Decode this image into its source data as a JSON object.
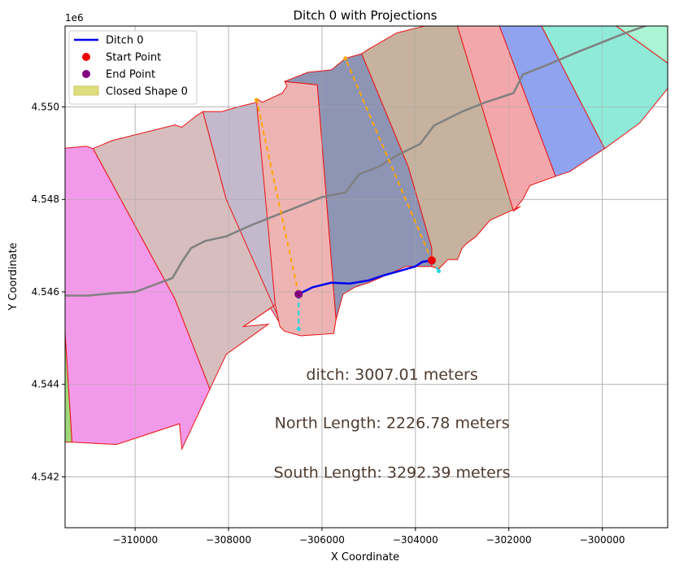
{
  "chart_data": {
    "type": "line",
    "title": "Ditch 0 with Projections",
    "xlabel": "X Coordinate",
    "ylabel": "Y Coordinate",
    "y_offset_label": "1e6",
    "xlim": [
      -311500,
      -298600
    ],
    "ylim": [
      4540900,
      4551750
    ],
    "grid": true,
    "legend_position": "top-left",
    "x_ticks": [
      {
        "value": -310000,
        "label": "−310000"
      },
      {
        "value": -308000,
        "label": "−308000"
      },
      {
        "value": -306000,
        "label": "−306000"
      },
      {
        "value": -304000,
        "label": "−304000"
      },
      {
        "value": -302000,
        "label": "−302000"
      },
      {
        "value": -300000,
        "label": "−300000"
      }
    ],
    "y_ticks": [
      {
        "value": 4542000,
        "label": "4.542"
      },
      {
        "value": 4544000,
        "label": "4.544"
      },
      {
        "value": 4546000,
        "label": "4.546"
      },
      {
        "value": 4548000,
        "label": "4.548"
      },
      {
        "value": 4550000,
        "label": "4.550"
      }
    ],
    "legend": [
      {
        "label": "Ditch 0",
        "kind": "line",
        "color": "#0000ee"
      },
      {
        "label": "Start Point",
        "kind": "marker",
        "color": "#ee0000"
      },
      {
        "label": "End Point",
        "kind": "marker",
        "color": "#800080"
      },
      {
        "label": "Closed Shape 0",
        "kind": "patch",
        "color": "#dede80"
      }
    ],
    "polygons": [
      {
        "fill": "#9fd77a",
        "points": [
          [
            -311600,
            4546700
          ],
          [
            -311350,
            4542750
          ],
          [
            -311600,
            4542750
          ]
        ]
      },
      {
        "fill": "#f29ae9",
        "points": [
          [
            -311600,
            4549100
          ],
          [
            -311050,
            4549150
          ],
          [
            -310900,
            4549100
          ],
          [
            -309150,
            4545850
          ],
          [
            -308400,
            4543900
          ],
          [
            -309000,
            4542600
          ],
          [
            -309050,
            4543150
          ],
          [
            -310400,
            4542700
          ],
          [
            -311350,
            4542750
          ],
          [
            -311600,
            4546700
          ]
        ]
      },
      {
        "fill": "#d7bdbe",
        "points": [
          [
            -310900,
            4549100
          ],
          [
            -310500,
            4549270
          ],
          [
            -309150,
            4549610
          ],
          [
            -309000,
            4549560
          ],
          [
            -308700,
            4549800
          ],
          [
            -308550,
            4549900
          ],
          [
            -308050,
            4548000
          ],
          [
            -307000,
            4545720
          ],
          [
            -307100,
            4545650
          ],
          [
            -307680,
            4545250
          ],
          [
            -307150,
            4545300
          ],
          [
            -308050,
            4544650
          ],
          [
            -308400,
            4543900
          ],
          [
            -309150,
            4545850
          ]
        ]
      },
      {
        "fill": "#c4b8cc",
        "points": [
          [
            -308550,
            4549900
          ],
          [
            -308150,
            4549900
          ],
          [
            -307800,
            4550000
          ],
          [
            -307400,
            4550100
          ],
          [
            -307380,
            4550170
          ],
          [
            -307000,
            4545720
          ],
          [
            -307680,
            4545250
          ],
          [
            -307100,
            4545650
          ],
          [
            -306800,
            4545150
          ],
          [
            -308050,
            4548000
          ]
        ]
      },
      {
        "fill": "#eeb4b4",
        "points": [
          [
            -307400,
            4550100
          ],
          [
            -307380,
            4550170
          ],
          [
            -307280,
            4550100
          ],
          [
            -306850,
            4550300
          ],
          [
            -306750,
            4550450
          ],
          [
            -306800,
            4550550
          ],
          [
            -306100,
            4550480
          ],
          [
            -305700,
            4545400
          ],
          [
            -305750,
            4545100
          ],
          [
            -306450,
            4545050
          ],
          [
            -306800,
            4545150
          ],
          [
            -306900,
            4545250
          ],
          [
            -307000,
            4545720
          ]
        ]
      },
      {
        "fill": "#8e94b4",
        "points": [
          [
            -306800,
            4550550
          ],
          [
            -306300,
            4550750
          ],
          [
            -305800,
            4550800
          ],
          [
            -305500,
            4551050
          ],
          [
            -305150,
            4551150
          ],
          [
            -304150,
            4548700
          ],
          [
            -303650,
            4546950
          ],
          [
            -303650,
            4546550
          ],
          [
            -304200,
            4546550
          ],
          [
            -305000,
            4546200
          ],
          [
            -305300,
            4546100
          ],
          [
            -305550,
            4545950
          ],
          [
            -305700,
            4545400
          ],
          [
            -306100,
            4550480
          ]
        ]
      },
      {
        "fill": "#c6b29e",
        "points": [
          [
            -305150,
            4551150
          ],
          [
            -305000,
            4551250
          ],
          [
            -304400,
            4551600
          ],
          [
            -303800,
            4551750
          ],
          [
            -303100,
            4551750
          ],
          [
            -301900,
            4547750
          ],
          [
            -301750,
            4547850
          ],
          [
            -302400,
            4547550
          ],
          [
            -302700,
            4547200
          ],
          [
            -302900,
            4547050
          ],
          [
            -303000,
            4546950
          ],
          [
            -303100,
            4546700
          ],
          [
            -303300,
            4546700
          ],
          [
            -303500,
            4546500
          ],
          [
            -303650,
            4546550
          ],
          [
            -303650,
            4546950
          ],
          [
            -304150,
            4548700
          ]
        ]
      },
      {
        "fill": "#f4a7ab",
        "points": [
          [
            -303100,
            4551750
          ],
          [
            -302200,
            4551750
          ],
          [
            -301000,
            4548500
          ],
          [
            -301550,
            4548300
          ],
          [
            -301700,
            4548000
          ],
          [
            -301900,
            4547750
          ]
        ]
      },
      {
        "fill": "#8fa3ef",
        "points": [
          [
            -302200,
            4551750
          ],
          [
            -301300,
            4551750
          ],
          [
            -299950,
            4549100
          ],
          [
            -300700,
            4548600
          ],
          [
            -301000,
            4548500
          ]
        ]
      },
      {
        "fill": "#8fead8",
        "points": [
          [
            -301300,
            4551750
          ],
          [
            -299700,
            4551750
          ],
          [
            -298600,
            4550950
          ],
          [
            -298600,
            4550400
          ],
          [
            -299200,
            4549650
          ],
          [
            -299950,
            4549100
          ]
        ]
      },
      {
        "fill": "#abf4d4",
        "points": [
          [
            -299700,
            4551750
          ],
          [
            -298600,
            4551750
          ],
          [
            -298600,
            4550950
          ]
        ]
      },
      {
        "fill": "#b2bb98",
        "points": [
          [
            -298600,
            4551750
          ],
          [
            -298500,
            4551750
          ],
          [
            -298500,
            4550500
          ],
          [
            -298600,
            4550400
          ]
        ]
      }
    ],
    "centerline": [
      [
        -311600,
        4545920
      ],
      [
        -311000,
        4545920
      ],
      [
        -310500,
        4545970
      ],
      [
        -310000,
        4546000
      ],
      [
        -309600,
        4546150
      ],
      [
        -309200,
        4546300
      ],
      [
        -309000,
        4546650
      ],
      [
        -308800,
        4546950
      ],
      [
        -308500,
        4547100
      ],
      [
        -308050,
        4547200
      ],
      [
        -307500,
        4547450
      ],
      [
        -307000,
        4547650
      ],
      [
        -306500,
        4547850
      ],
      [
        -306000,
        4548050
      ],
      [
        -305500,
        4548150
      ],
      [
        -305200,
        4548550
      ],
      [
        -304800,
        4548700
      ],
      [
        -304400,
        4548950
      ],
      [
        -303900,
        4549200
      ],
      [
        -303600,
        4549600
      ],
      [
        -303000,
        4549900
      ],
      [
        -302500,
        4550100
      ],
      [
        -301900,
        4550300
      ],
      [
        -301700,
        4550700
      ],
      [
        -301200,
        4550900
      ],
      [
        -300500,
        4551200
      ],
      [
        -299500,
        4551600
      ],
      [
        -298800,
        4551850
      ]
    ],
    "ditch": [
      [
        -306500,
        4545950
      ],
      [
        -306200,
        4546100
      ],
      [
        -305800,
        4546200
      ],
      [
        -305400,
        4546180
      ],
      [
        -305000,
        4546250
      ],
      [
        -304700,
        4546350
      ],
      [
        -304350,
        4546450
      ],
      [
        -304000,
        4546550
      ],
      [
        -303850,
        4546650
      ],
      [
        -303650,
        4546680
      ]
    ],
    "start_point": [
      -303650,
      4546680
    ],
    "end_point": [
      -306500,
      4545950
    ],
    "projections": [
      {
        "from": [
          -303650,
          4546680
        ],
        "to": [
          -305500,
          4551050
        ],
        "color": "#ffa500"
      },
      {
        "from": [
          -306500,
          4545950
        ],
        "to": [
          -307400,
          4550150
        ],
        "color": "#ffa500"
      },
      {
        "from": [
          -303650,
          4546680
        ],
        "to": [
          -303500,
          4546450
        ],
        "color": "#22d3e0"
      },
      {
        "from": [
          -306500,
          4545950
        ],
        "to": [
          -306500,
          4545200
        ],
        "color": "#22d3e0"
      }
    ],
    "annotations": [
      {
        "text": "ditch: 3007.01 meters",
        "x": -304500,
        "y": 4544100
      },
      {
        "text": "North Length: 2226.78 meters",
        "x": -304500,
        "y": 4543050
      },
      {
        "text": "South Length: 3292.39 meters",
        "x": -304500,
        "y": 4541980
      }
    ]
  }
}
